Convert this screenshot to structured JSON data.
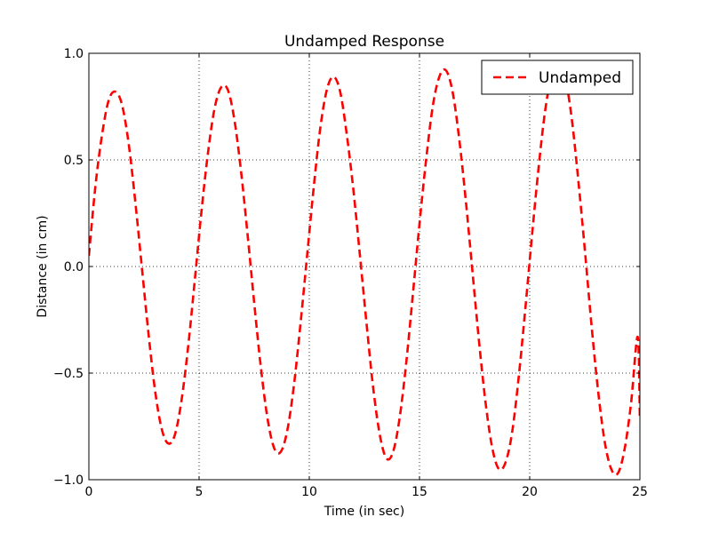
{
  "chart_data": {
    "type": "line",
    "title": "Undamped Response",
    "xlabel": "Time (in sec)",
    "ylabel": "Distance (in cm)",
    "xlim": [
      0,
      25
    ],
    "ylim": [
      -1.0,
      1.0
    ],
    "xticks": [
      0,
      5,
      10,
      15,
      20,
      25
    ],
    "xtick_labels": [
      "0",
      "5",
      "10",
      "15",
      "20",
      "25"
    ],
    "yticks": [
      -1.0,
      -0.5,
      0.0,
      0.5,
      1.0
    ],
    "ytick_labels": [
      "−1.0",
      "−0.5",
      "0.0",
      "0.5",
      "1.0"
    ],
    "grid": true,
    "legend_position": "top-right",
    "series": [
      {
        "name": "Undamped",
        "color": "#ff0000",
        "line_style": "dashed",
        "x": [
          0.0,
          0.3,
          0.6,
          0.9,
          1.2,
          1.5,
          1.8,
          2.1,
          2.4,
          2.7,
          3.0,
          3.3,
          3.6,
          3.9,
          4.2,
          4.5,
          4.8,
          5.1,
          5.4,
          5.7,
          6.0,
          6.3,
          6.6,
          6.9,
          7.2,
          7.5,
          7.8,
          8.1,
          8.4,
          8.7,
          9.0,
          9.3,
          9.6,
          9.9,
          10.2,
          10.5,
          10.8,
          11.1,
          11.4,
          11.7,
          12.0,
          12.3,
          12.6,
          12.9,
          13.2,
          13.5,
          13.8,
          14.1,
          14.4,
          14.7,
          15.0,
          15.3,
          15.6,
          15.9,
          16.2,
          16.5,
          16.8,
          17.1,
          17.4,
          17.7,
          18.0,
          18.3,
          18.6,
          18.9,
          19.2,
          19.5,
          19.8,
          20.1,
          20.4,
          20.7,
          21.0,
          21.3,
          21.6,
          21.9,
          22.2,
          22.5,
          22.8,
          23.1,
          23.4,
          23.7,
          24.0,
          24.3,
          24.6,
          24.9,
          25.0
        ],
        "y": [
          0.05,
          0.38,
          0.62,
          0.78,
          0.82,
          0.76,
          0.58,
          0.31,
          0.0,
          -0.31,
          -0.58,
          -0.76,
          -0.83,
          -0.79,
          -0.63,
          -0.38,
          -0.07,
          0.25,
          0.53,
          0.74,
          0.84,
          0.83,
          0.69,
          0.45,
          0.15,
          -0.17,
          -0.47,
          -0.71,
          -0.85,
          -0.87,
          -0.77,
          -0.56,
          -0.27,
          0.05,
          0.37,
          0.65,
          0.83,
          0.89,
          0.82,
          0.62,
          0.36,
          0.05,
          -0.27,
          -0.57,
          -0.79,
          -0.9,
          -0.87,
          -0.71,
          -0.45,
          -0.13,
          0.2,
          0.5,
          0.75,
          0.89,
          0.92,
          0.82,
          0.6,
          0.31,
          -0.02,
          -0.35,
          -0.64,
          -0.85,
          -0.95,
          -0.92,
          -0.78,
          -0.52,
          -0.2,
          0.14,
          0.46,
          0.73,
          0.9,
          0.96,
          0.89,
          0.7,
          0.41,
          0.08,
          -0.27,
          -0.58,
          -0.82,
          -0.95,
          -0.97,
          -0.86,
          -0.64,
          -0.33,
          -0.72
        ]
      }
    ]
  }
}
